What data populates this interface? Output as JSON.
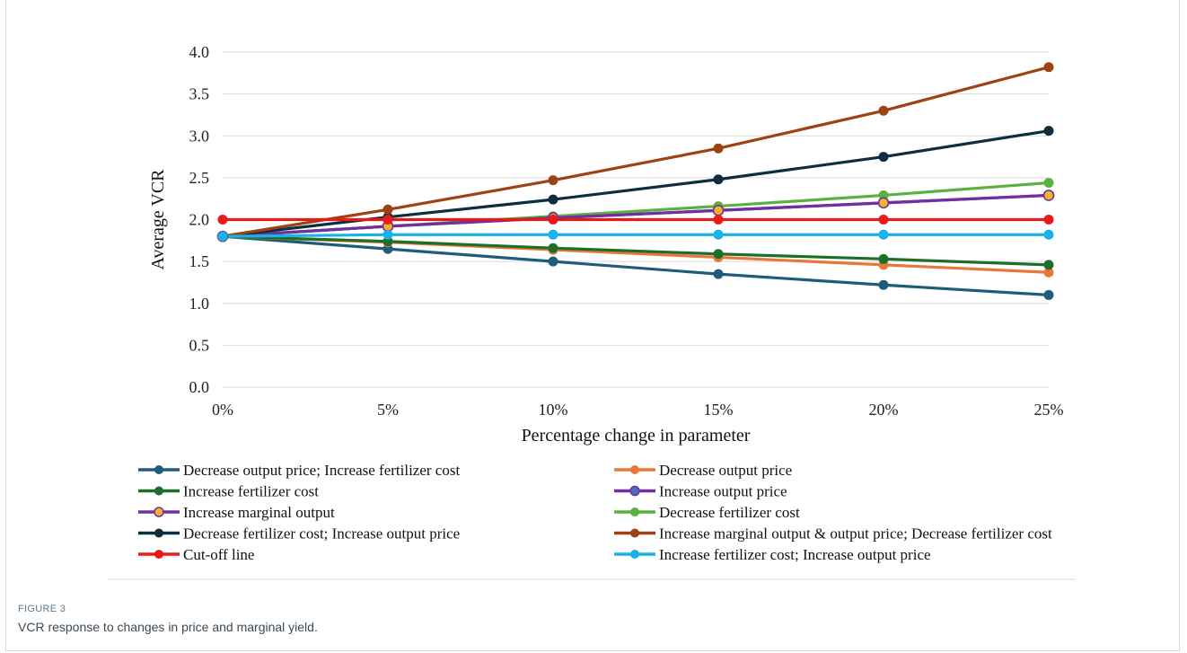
{
  "figure": {
    "label": "FIGURE 3",
    "caption": "VCR response to changes in price and marginal yield."
  },
  "chart_data": {
    "type": "line",
    "title": "",
    "xlabel": "Percentage change in parameter",
    "ylabel": "Average VCR",
    "categories": [
      "0%",
      "5%",
      "10%",
      "15%",
      "20%",
      "25%"
    ],
    "ylim": [
      0,
      4
    ],
    "yticks": [
      "0.0",
      "0.5",
      "1.0",
      "1.5",
      "2.0",
      "2.5",
      "3.0",
      "3.5",
      "4.0"
    ],
    "grid": true,
    "legend_position": "bottom",
    "series": [
      {
        "name": "Decrease output price; Increase fertilizer cost",
        "color": "#1f5c7a",
        "marker": "#1f5c7a",
        "values": [
          1.8,
          1.65,
          1.5,
          1.35,
          1.22,
          1.1
        ]
      },
      {
        "name": "Decrease output price",
        "color": "#e8783a",
        "marker": "#e8783a",
        "values": [
          1.8,
          1.73,
          1.64,
          1.55,
          1.46,
          1.37
        ]
      },
      {
        "name": "Increase fertilizer cost",
        "color": "#1e6e2a",
        "marker": "#1e6e2a",
        "values": [
          1.8,
          1.74,
          1.66,
          1.59,
          1.53,
          1.46
        ]
      },
      {
        "name": "Increase output price",
        "color": "#7030a0",
        "marker": "#4472c4",
        "values": [
          1.8,
          1.92,
          2.02,
          2.11,
          2.2,
          2.29
        ]
      },
      {
        "name": "Increase marginal output",
        "color": "#7030a0",
        "marker": "#f0b429",
        "values": [
          1.8,
          1.92,
          2.02,
          2.11,
          2.2,
          2.29
        ]
      },
      {
        "name": "Decrease fertilizer cost",
        "color": "#5ab040",
        "marker": "#5ab040",
        "values": [
          1.8,
          1.92,
          2.04,
          2.16,
          2.29,
          2.44
        ]
      },
      {
        "name": "Decrease fertilizer cost; Increase output price",
        "color": "#0d2e3f",
        "marker": "#0d2e3f",
        "values": [
          1.8,
          2.03,
          2.24,
          2.48,
          2.75,
          3.06
        ]
      },
      {
        "name": "Increase marginal output & output price; Decrease fertilizer cost",
        "color": "#9c4214",
        "marker": "#9c4214",
        "values": [
          1.8,
          2.12,
          2.47,
          2.85,
          3.3,
          3.82
        ]
      },
      {
        "name": "Cut-off line",
        "color": "#e8191b",
        "marker": "#e8191b",
        "values": [
          2.0,
          2.0,
          2.0,
          2.0,
          2.0,
          2.0
        ]
      },
      {
        "name": "Increase fertilizer cost; Increase output price",
        "color": "#1ab0e8",
        "marker": "#1ab0e8",
        "values": [
          1.8,
          1.82,
          1.82,
          1.82,
          1.82,
          1.82
        ]
      }
    ]
  }
}
